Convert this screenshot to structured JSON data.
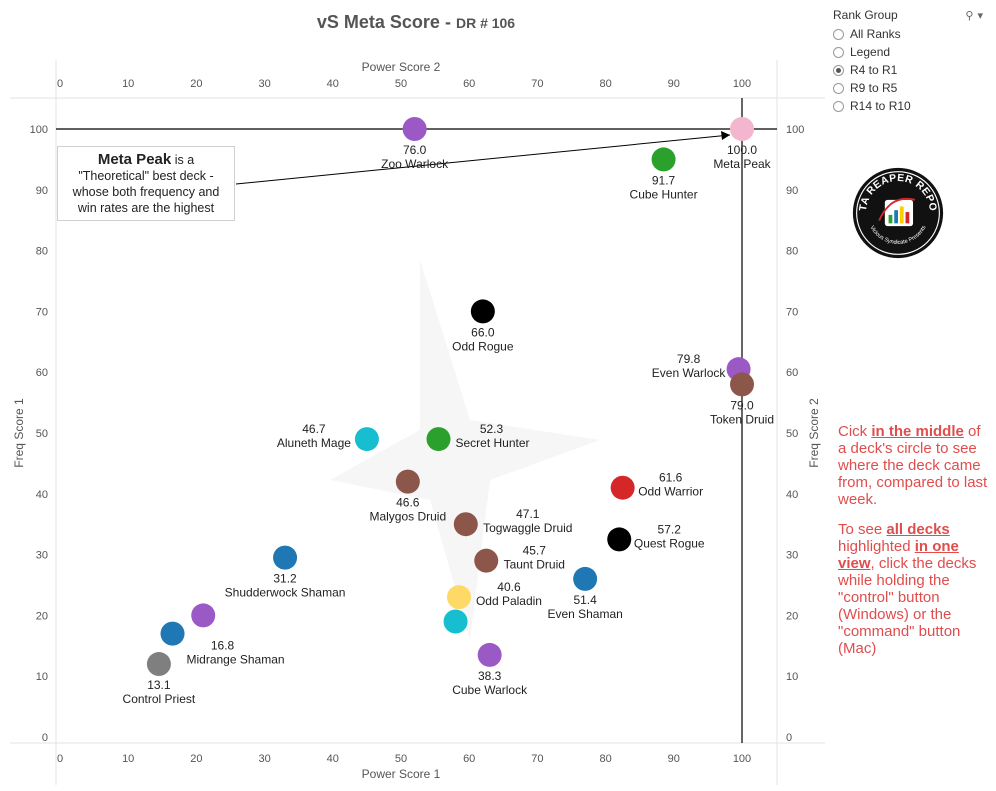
{
  "title": {
    "main": "vS Meta Score",
    "sep": " - ",
    "sub": "DR # 106"
  },
  "filter": {
    "label": "Rank Group",
    "options": [
      "All Ranks",
      "Legend",
      "R4 to R1",
      "R9 to R5",
      "R14 to R10"
    ],
    "selected_index": 2
  },
  "logo": {
    "line1": "DATA REAPER REPORT",
    "line2": "Vicious Syndicate Presents"
  },
  "annotation": {
    "bold": "Meta Peak",
    "rest1": " is a",
    "line2": "\"Theoretical\" best deck -",
    "line3": "whose both frequency and",
    "line4": "win rates are the highest"
  },
  "note": {
    "p1_a": "Cick ",
    "p1_em": "in the middle",
    "p1_b": " of a deck's circle to see where the deck came from, compared to last week.",
    "p2_a": "To see ",
    "p2_em1": "all decks ",
    "p2_b": " highlighted ",
    "p2_em2": "in one view",
    "p2_c": ", click the decks while holding the \"control\" button (Windows) or the \"command\" button (Mac)"
  },
  "chart_data": {
    "type": "scatter",
    "title": "vS Meta Score - DR # 106",
    "xlabel": "Power Score 1",
    "x2label": "Power Score 2",
    "ylabel": "Freq Score 1",
    "y2label": "Freq Score 2",
    "xlim": [
      -0.5,
      105
    ],
    "ylim": [
      -1,
      105
    ],
    "xticks": [
      0,
      10,
      20,
      30,
      40,
      50,
      60,
      70,
      80,
      90,
      100
    ],
    "yticks": [
      0,
      10,
      20,
      30,
      40,
      50,
      60,
      70,
      80,
      90,
      100
    ],
    "grid": false,
    "reference_lines": {
      "x": 100,
      "y": 100
    },
    "points": [
      {
        "name": "Meta Peak",
        "score": "100.0",
        "x": 100,
        "y": 100,
        "color": "#f4b5cf",
        "lbl": "below"
      },
      {
        "name": "Zoo Warlock",
        "score": "76.0",
        "x": 52,
        "y": 100,
        "color": "#9b59c6",
        "lbl": "below"
      },
      {
        "name": "Cube Hunter",
        "score": "91.7",
        "x": 88.5,
        "y": 95,
        "color": "#2ca02c",
        "lbl": "below"
      },
      {
        "name": "Odd Rogue",
        "score": "66.0",
        "x": 62,
        "y": 70,
        "color": "#000000",
        "lbl": "below"
      },
      {
        "name": "Even Warlock",
        "score": "79.8",
        "x": 99.5,
        "y": 60.5,
        "color": "#9b59c6",
        "lbl": "left"
      },
      {
        "name": "Token Druid",
        "score": "79.0",
        "x": 100,
        "y": 58,
        "color": "#8c564b",
        "lbl": "below"
      },
      {
        "name": "Aluneth Mage",
        "score": "46.7",
        "x": 45,
        "y": 49,
        "color": "#17becf",
        "lbl": "left"
      },
      {
        "name": "Secret Hunter",
        "score": "52.3",
        "x": 55.5,
        "y": 49,
        "color": "#2ca02c",
        "lbl": "right"
      },
      {
        "name": "Malygos Druid",
        "score": "46.6",
        "x": 51,
        "y": 42,
        "color": "#8c564b",
        "lbl": "below"
      },
      {
        "name": "Odd Warrior",
        "score": "61.6",
        "x": 82.5,
        "y": 41,
        "color": "#d62728",
        "lbl": "right"
      },
      {
        "name": "Togwaggle Druid",
        "score": "47.1",
        "x": 59.5,
        "y": 35,
        "color": "#8c564b",
        "lbl": "right"
      },
      {
        "name": "Quest Rogue",
        "score": "57.2",
        "x": 82,
        "y": 32.5,
        "color": "#000000",
        "lbl": "right"
      },
      {
        "name": "Shudderwock Shaman",
        "score": "31.2",
        "x": 33,
        "y": 29.5,
        "color": "#1f77b4",
        "lbl": "below"
      },
      {
        "name": "Taunt Druid",
        "score": "45.7",
        "x": 62.5,
        "y": 29,
        "color": "#8c564b",
        "lbl": "right"
      },
      {
        "name": "Even Shaman",
        "score": "51.4",
        "x": 77,
        "y": 26,
        "color": "#1f77b4",
        "lbl": "below"
      },
      {
        "name": "Odd Paladin",
        "score": "40.6",
        "x": 58.5,
        "y": 23,
        "color": "#ffd966",
        "lbl": "right"
      },
      {
        "name": "",
        "score": "",
        "x": 58,
        "y": 19,
        "color": "#17becf",
        "lbl": "none"
      },
      {
        "name": "",
        "score": "",
        "x": 21,
        "y": 20,
        "color": "#9b59c6",
        "lbl": "none"
      },
      {
        "name": "Midrange Shaman",
        "score": "16.8",
        "x": 16.5,
        "y": 17,
        "color": "#1f77b4",
        "lbl": "right"
      },
      {
        "name": "Cube Warlock",
        "score": "38.3",
        "x": 63,
        "y": 13.5,
        "color": "#9b59c6",
        "lbl": "below"
      },
      {
        "name": "Control Priest",
        "score": "13.1",
        "x": 14.5,
        "y": 12,
        "color": "#7f7f7f",
        "lbl": "below"
      }
    ]
  }
}
